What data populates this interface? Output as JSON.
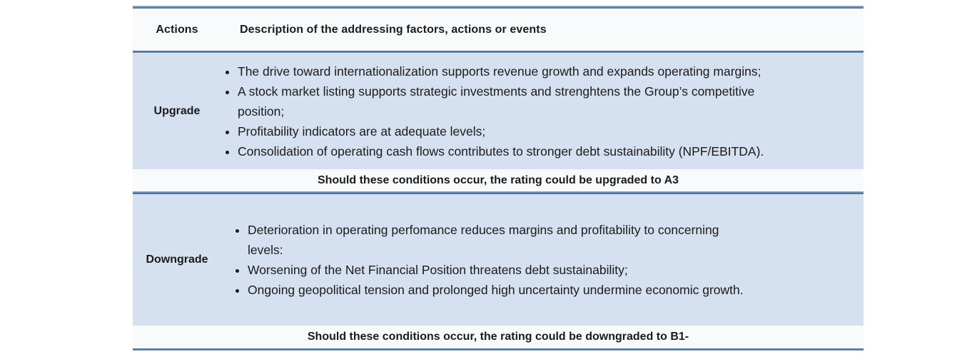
{
  "table": {
    "header": {
      "actions": "Actions",
      "description": "Description of the addressing factors, actions or events"
    },
    "upgrade": {
      "label": "Upgrade",
      "bullets": [
        "The drive toward internationalization supports revenue growth and expands operating margins;",
        "A stock market listing supports strategic investments and strenghtens the Group’s competitive\nposition;",
        "Profitability indicators are at adequate levels;",
        "Consolidation of operating cash flows contributes to stronger debt sustainability (NPF/EBITDA)."
      ],
      "outcome": "Should these conditions occur, the rating could be upgraded to A3"
    },
    "downgrade": {
      "label": "Downgrade",
      "bullets": [
        "Deterioration in operating perfomance reduces margins and profitability to concerning\nlevels:",
        "Worsening of the Net Financial Position threatens debt sustainability;",
        "Ongoing geopolitical tension and prolonged high uncertainty undermine economic growth."
      ],
      "outcome": "Should these conditions occur, the rating could be downgraded to B1-"
    }
  },
  "colors": {
    "row_highlight": "#d5e0f0",
    "row_light": "#f8fafc",
    "rule": "#54749f",
    "text": "#1b1b1b"
  }
}
